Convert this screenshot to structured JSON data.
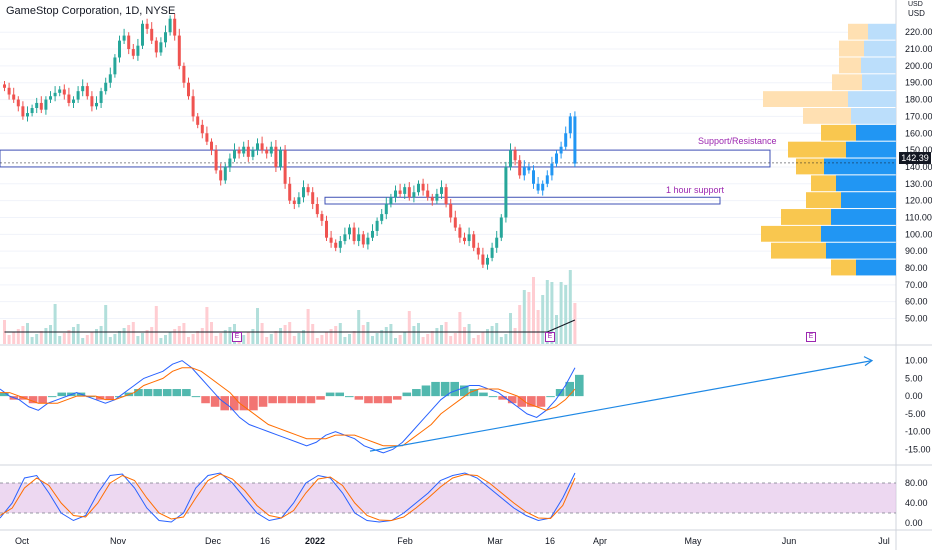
{
  "header": {
    "symbol_title": "GameStop Corporation, 1D, NYSE",
    "currency_top": "USD",
    "currency_top_prefix": "USD"
  },
  "colors": {
    "up": "#26a69a",
    "down": "#ef5350",
    "macd_line": "#2962ff",
    "signal_line": "#ff6d00",
    "stoch_k": "#2962ff",
    "stoch_d": "#ff6d00",
    "stoch_band": "#e1bee7",
    "zone": "#3f51b5",
    "annotation": "#9c27b0",
    "trend_arrow": "#1e88e5",
    "vp_up": "#2196f3",
    "vp_down": "#f9c74f"
  },
  "annotations": {
    "support_resistance": "Support/Resistance",
    "hour_support": "1 hour support",
    "earnings_badge": "E",
    "last_price": "142.39"
  },
  "chart_data": [
    {
      "type": "candlestick",
      "title": "GameStop Corporation, 1D, NYSE",
      "y_axis_ticks": [
        220,
        210,
        200,
        190,
        180,
        170,
        160,
        150,
        140,
        130,
        120,
        110,
        100,
        90,
        80,
        70,
        60,
        50
      ],
      "y_axis_labels": [
        "220.00",
        "210.00",
        "200.00",
        "190.00",
        "180.00",
        "170.00",
        "160.00",
        "150.00",
        "140.00",
        "130.00",
        "120.00",
        "110.00",
        "100.00",
        "90.00",
        "80.00",
        "70.00",
        "60.00",
        "50.00"
      ],
      "ylim": [
        42,
        232
      ],
      "x_axis_labels": [
        "Oct",
        "Nov",
        "Dec",
        "16",
        "2022",
        "Feb",
        "Mar",
        "16",
        "Apr",
        "May",
        "Jun",
        "Jul"
      ],
      "close_series": [
        187,
        183,
        180,
        176,
        170,
        172,
        175,
        178,
        174,
        180,
        182,
        184,
        186,
        183,
        178,
        180,
        185,
        188,
        182,
        176,
        178,
        185,
        190,
        195,
        205,
        215,
        218,
        210,
        206,
        212,
        225,
        222,
        215,
        208,
        214,
        220,
        228,
        218,
        200,
        190,
        182,
        170,
        165,
        160,
        155,
        150,
        138,
        132,
        140,
        145,
        150,
        148,
        152,
        146,
        150,
        154,
        150,
        148,
        152,
        140,
        150,
        130,
        120,
        118,
        122,
        128,
        125,
        118,
        112,
        108,
        98,
        95,
        92,
        96,
        100,
        104,
        96,
        100,
        94,
        98,
        102,
        108,
        112,
        118,
        122,
        126,
        124,
        128,
        122,
        125,
        130,
        126,
        122,
        120,
        124,
        128,
        118,
        110,
        104,
        98,
        96,
        100,
        92,
        88,
        82,
        86,
        92,
        98,
        110,
        140,
        150,
        144,
        135,
        140,
        138,
        130,
        126,
        130,
        135,
        142,
        148,
        152,
        160,
        170,
        142
      ],
      "last_price": 142.39,
      "support_resistance_band": [
        140,
        150
      ],
      "hour_support_band": [
        118,
        122
      ]
    },
    {
      "type": "bar",
      "title": "Volume",
      "note": "daily volume bars with moving average"
    },
    {
      "type": "line",
      "title": "MACD",
      "y_axis_labels": [
        "10.00",
        "5.00",
        "0.00",
        "-5.00",
        "-10.00",
        "-15.00"
      ],
      "ylim": [
        -18,
        13
      ],
      "series": [
        {
          "values": [
            2,
            0,
            -1,
            -3,
            -4,
            -2,
            -1,
            0,
            1,
            0,
            -1,
            -2,
            -1,
            1,
            3,
            5,
            6,
            7,
            9,
            10,
            8,
            5,
            2,
            -1,
            -3,
            -6,
            -8,
            -9,
            -10,
            -11,
            -12,
            -13,
            -14,
            -13,
            -11,
            -10,
            -11,
            -12,
            -14,
            -15,
            -16,
            -15,
            -13,
            -10,
            -7,
            -4,
            -1,
            1,
            2,
            3,
            3,
            2,
            1,
            -1,
            -3,
            -5,
            -6,
            -4,
            -1,
            3,
            8
          ]
        },
        {
          "values": [
            1,
            1,
            0,
            -1,
            -2,
            -2,
            -2,
            -1,
            0,
            0,
            0,
            -1,
            -1,
            0,
            1,
            3,
            4,
            5,
            7,
            8,
            8,
            7,
            5,
            3,
            1,
            -2,
            -4,
            -6,
            -8,
            -9,
            -10,
            -11,
            -12,
            -12,
            -12,
            -11,
            -11,
            -11,
            -12,
            -13,
            -14,
            -14,
            -14,
            -12,
            -10,
            -8,
            -5,
            -3,
            -1,
            1,
            2,
            2,
            2,
            1,
            0,
            -2,
            -3,
            -4,
            -3,
            -1,
            2
          ]
        }
      ]
    },
    {
      "type": "line",
      "title": "Stochastic RSI",
      "y_axis_labels": [
        "80.00",
        "40.00",
        "0.00"
      ],
      "ylim": [
        -10,
        110
      ],
      "upper_band": 80,
      "lower_band": 20,
      "series": [
        {
          "values": [
            10,
            40,
            90,
            95,
            60,
            20,
            5,
            15,
            60,
            95,
            98,
            70,
            30,
            5,
            2,
            20,
            70,
            95,
            100,
            80,
            50,
            20,
            5,
            10,
            40,
            80,
            95,
            90,
            60,
            20,
            5,
            2,
            5,
            20,
            40,
            60,
            85,
            95,
            100,
            90,
            70,
            50,
            30,
            15,
            5,
            10,
            50,
            100
          ]
        },
        {
          "values": [
            15,
            30,
            70,
            90,
            75,
            40,
            15,
            12,
            40,
            80,
            95,
            85,
            50,
            20,
            8,
            12,
            50,
            85,
            98,
            88,
            65,
            35,
            15,
            10,
            25,
            60,
            88,
            92,
            75,
            40,
            15,
            6,
            5,
            12,
            30,
            50,
            72,
            90,
            97,
            95,
            80,
            60,
            40,
            22,
            10,
            9,
            35,
            90
          ]
        }
      ]
    }
  ]
}
